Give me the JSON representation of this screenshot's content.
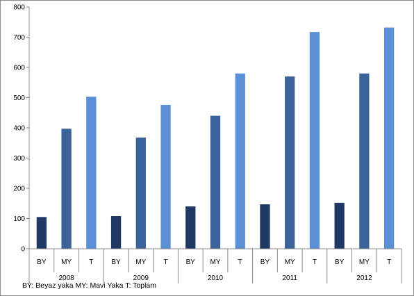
{
  "chart_data": {
    "type": "bar",
    "title": "",
    "xlabel": "",
    "ylabel": "",
    "ylim": [
      0,
      800
    ],
    "yticks": [
      0,
      100,
      200,
      300,
      400,
      500,
      600,
      700,
      800
    ],
    "grid": false,
    "legend": "none",
    "groups": [
      "2008",
      "2009",
      "2010",
      "2011",
      "2012"
    ],
    "categories": [
      "BY",
      "MY",
      "T"
    ],
    "colors": {
      "BY": "#1f3864",
      "MY": "#3b6399",
      "T": "#5b8fd6"
    },
    "values": [
      [
        105,
        397,
        503
      ],
      [
        108,
        368,
        476
      ],
      [
        140,
        440,
        580
      ],
      [
        147,
        570,
        717
      ],
      [
        152,
        580,
        732
      ]
    ]
  },
  "footnote": "BY: Beyaz yaka MY: Mavi Yaka T: Toplam"
}
